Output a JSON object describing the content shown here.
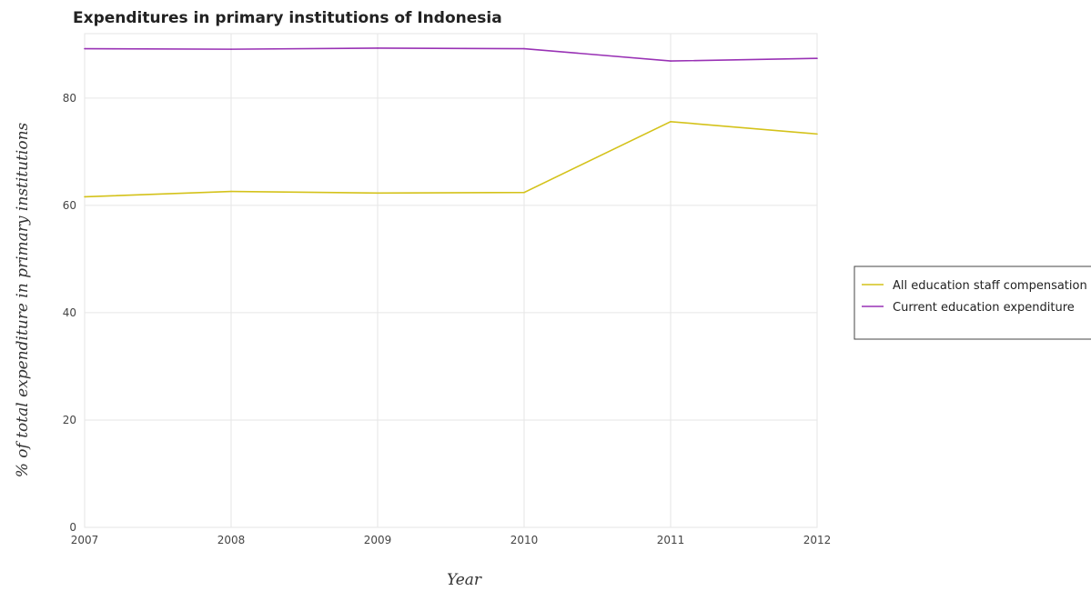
{
  "chart_data": {
    "type": "line",
    "title": "Expenditures in primary institutions of Indonesia",
    "xlabel": "Year",
    "ylabel": "% of total expenditure in primary institutions",
    "categories": [
      "2007",
      "2008",
      "2009",
      "2010",
      "2011",
      "2012"
    ],
    "ylim": [
      0,
      92
    ],
    "yticks": [
      0,
      20,
      40,
      60,
      80
    ],
    "grid": true,
    "legend_position": "right",
    "series": [
      {
        "name": "All education staff compensation",
        "color": "#d4c21a",
        "values": [
          61.6,
          62.6,
          62.3,
          62.4,
          75.6,
          73.3
        ]
      },
      {
        "name": "Current education expenditure",
        "color": "#9932b5",
        "values": [
          89.2,
          89.1,
          89.3,
          89.2,
          86.9,
          87.4
        ]
      }
    ]
  }
}
